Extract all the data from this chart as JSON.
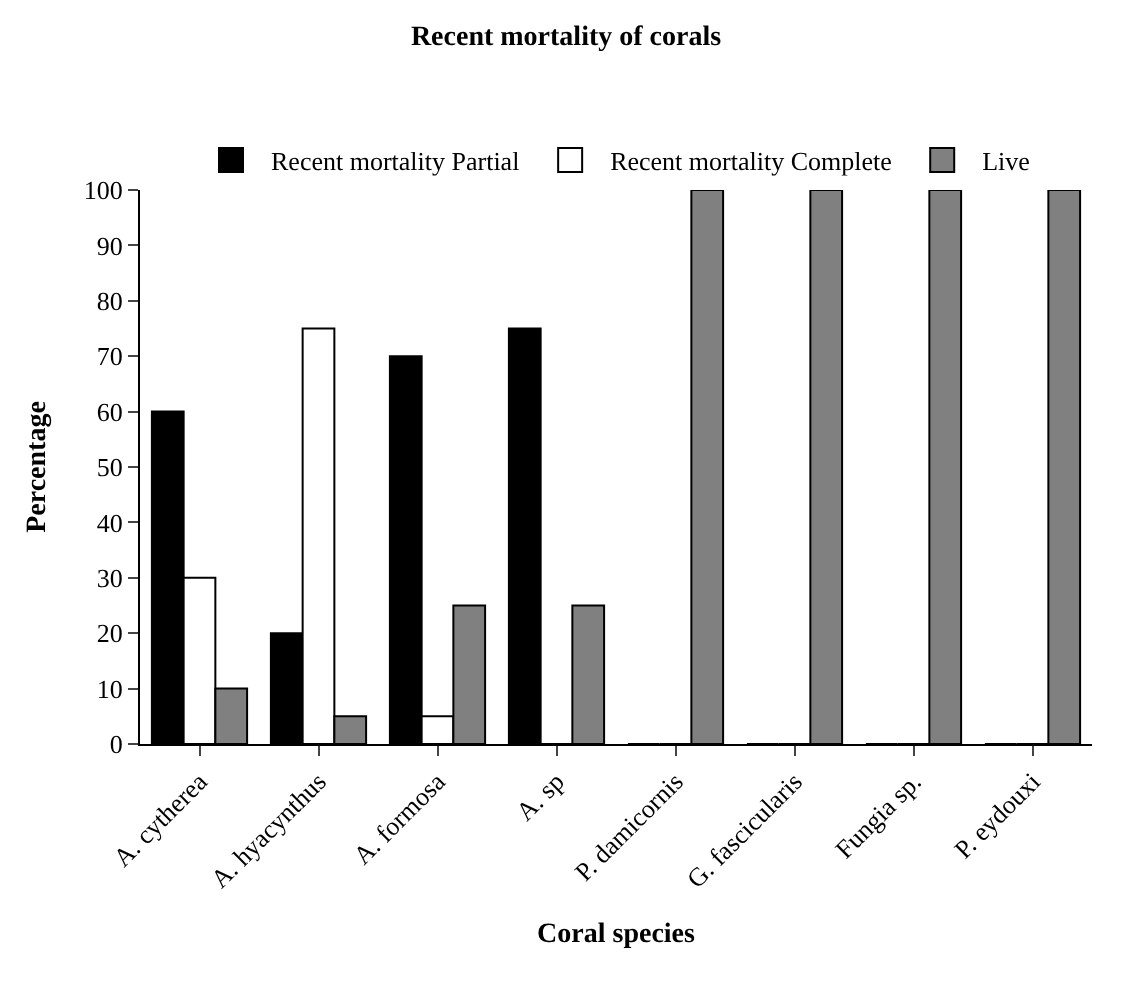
{
  "chart_data": {
    "type": "bar",
    "title": "Recent mortality of corals",
    "xlabel": "Coral species",
    "ylabel": "Percentage",
    "categories": [
      "A. cytherea",
      "A. hyacynthus",
      "A. formosa",
      "A. sp",
      "P. damicornis",
      "G. fascicularis",
      "Fungia sp.",
      "P. eydouxi"
    ],
    "series": [
      {
        "name": "Recent mortality Partial",
        "color": "#000000",
        "values": [
          60,
          20,
          70,
          75,
          0,
          0,
          0,
          0
        ]
      },
      {
        "name": "Recent mortality Complete",
        "color": "#ffffff",
        "values": [
          30,
          75,
          5,
          0,
          0,
          0,
          0,
          0
        ]
      },
      {
        "name": "Live",
        "color": "#808080",
        "values": [
          10,
          5,
          25,
          25,
          100,
          100,
          100,
          100
        ]
      }
    ],
    "ylim": [
      0,
      100
    ],
    "yticks": [
      0,
      10,
      20,
      30,
      40,
      50,
      60,
      70,
      80,
      90,
      100
    ],
    "grid": false,
    "legend": "top"
  }
}
